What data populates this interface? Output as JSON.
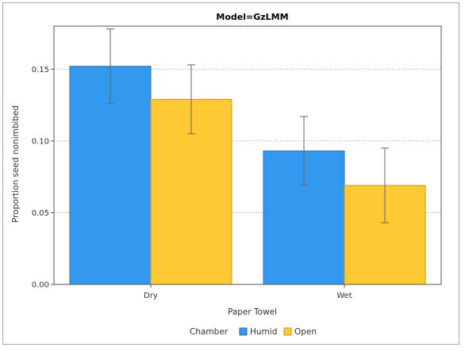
{
  "chart_data": {
    "type": "bar",
    "title": "Model=GzLMM",
    "xlabel": "Paper Towel",
    "ylabel": "Proportion seed nonimbibed",
    "categories": [
      "Dry",
      "Wet"
    ],
    "ylim": [
      0,
      0.18
    ],
    "yticks": [
      "0.00",
      "0.05",
      "0.10",
      "0.15"
    ],
    "grid": "horizontal dotted",
    "legend": {
      "title": "Chamber",
      "placement": "bottom-center"
    },
    "series": [
      {
        "name": "Humid",
        "color": "#3399ee",
        "values": [
          0.152,
          0.093
        ],
        "error_low": [
          0.126,
          0.069
        ],
        "error_high": [
          0.178,
          0.117
        ]
      },
      {
        "name": "Open",
        "color": "#ffc933",
        "values": [
          0.129,
          0.069
        ],
        "error_low": [
          0.105,
          0.043
        ],
        "error_high": [
          0.153,
          0.095
        ]
      }
    ]
  }
}
